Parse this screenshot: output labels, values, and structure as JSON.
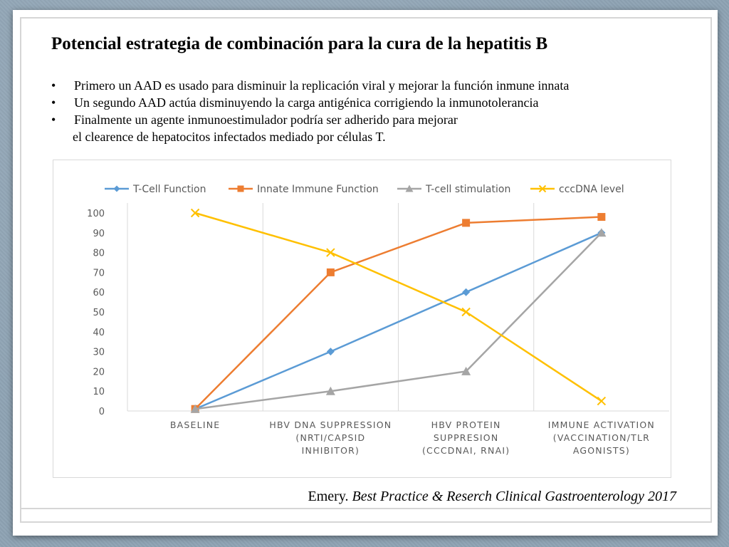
{
  "slide": {
    "title": "Potencial estrategia de combinación para la cura de la hepatitis B",
    "bullet_symbol": "•",
    "bullets": [
      "Primero un AAD es usado para disminuir la replicación viral y mejorar la función inmune innata",
      "Un segundo AAD actúa disminuyendo la carga antigénica corrigiendo la inmunotolerancia",
      "Finalmente un agente inmunoestimulador podría ser adherido para mejorar"
    ],
    "bullet_continuation": "el clearence de hepatocitos infectados mediado por células T.",
    "citation_author": "Emery.",
    "citation_source": "Best Practice & Reserch Clinical Gastroenterology 2017"
  },
  "chart_data": {
    "type": "line",
    "categories": [
      [
        "BASELINE"
      ],
      [
        "HBV DNA SUPPRESSION",
        "(NRTI/CAPSID",
        "INHIBITOR)"
      ],
      [
        "HBV PROTEIN",
        "SUPPRESION",
        "(CCCDNAI, RNAI)"
      ],
      [
        "IMMUNE ACTIVATION",
        "(VACCINATION/TLR",
        "AGONISTS)"
      ]
    ],
    "series": [
      {
        "name": "T-Cell Function",
        "color": "#5b9bd5",
        "marker": "diamond",
        "values": [
          1,
          30,
          60,
          90
        ]
      },
      {
        "name": "Innate Immune Function",
        "color": "#ed7d31",
        "marker": "square",
        "values": [
          1,
          70,
          95,
          98
        ]
      },
      {
        "name": "T-cell stimulation",
        "color": "#a5a5a5",
        "marker": "triangle",
        "values": [
          1,
          10,
          20,
          90
        ]
      },
      {
        "name": "cccDNA level",
        "color": "#ffc000",
        "marker": "x",
        "values": [
          100,
          80,
          50,
          5
        ]
      }
    ],
    "yticks": [
      0,
      10,
      20,
      30,
      40,
      50,
      60,
      70,
      80,
      90,
      100
    ],
    "ylim": [
      0,
      100
    ],
    "grid": "vertical-category-separators",
    "legend": "top"
  }
}
